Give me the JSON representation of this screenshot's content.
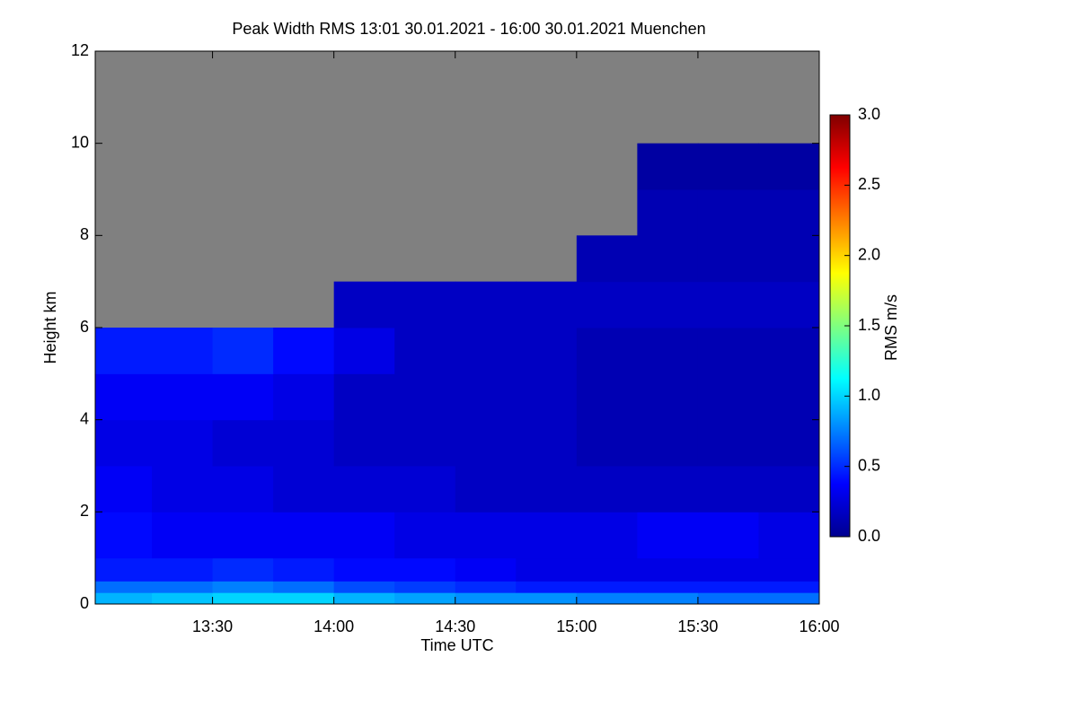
{
  "chart_data": {
    "type": "heatmap",
    "title": "Peak Width RMS   13:01 30.01.2021 - 16:00 30.01.2021 Muenchen",
    "xlabel": "Time UTC",
    "ylabel": "Height km",
    "colorbar_label": "RMS m/s",
    "xlim": [
      781,
      960
    ],
    "xticks": [
      {
        "value": 810,
        "label": "13:30"
      },
      {
        "value": 840,
        "label": "14:00"
      },
      {
        "value": 870,
        "label": "14:30"
      },
      {
        "value": 900,
        "label": "15:00"
      },
      {
        "value": 930,
        "label": "15:30"
      },
      {
        "value": 960,
        "label": "16:00"
      }
    ],
    "ylim": [
      0,
      12
    ],
    "yticks": [
      0,
      2,
      4,
      6,
      8,
      10,
      12
    ],
    "clim": [
      0,
      3
    ],
    "cticks": [
      {
        "value": 0,
        "label": "0.0"
      },
      {
        "value": 0.5,
        "label": "0.5"
      },
      {
        "value": 1,
        "label": "1.0"
      },
      {
        "value": 1.5,
        "label": "1.5"
      },
      {
        "value": 2,
        "label": "2.0"
      },
      {
        "value": 2.5,
        "label": "2.5"
      },
      {
        "value": 3,
        "label": "3.0"
      }
    ],
    "colormap": "jet",
    "missing_color": "#808080",
    "xbins": [
      781,
      795,
      810,
      825,
      840,
      855,
      870,
      885,
      900,
      915,
      930,
      945,
      960
    ],
    "ybins": [
      0,
      0.25,
      0.5,
      1,
      2,
      3,
      4,
      5,
      6,
      7,
      8,
      9,
      10,
      11,
      12
    ],
    "values": [
      [
        0.9,
        0.95,
        1.0,
        1.0,
        0.9,
        0.85,
        0.8,
        0.8,
        0.75,
        0.75,
        0.7,
        0.7
      ],
      [
        0.7,
        0.7,
        0.75,
        0.7,
        0.6,
        0.55,
        0.5,
        0.45,
        0.45,
        0.45,
        0.45,
        0.45
      ],
      [
        0.45,
        0.45,
        0.5,
        0.45,
        0.4,
        0.4,
        0.35,
        0.3,
        0.3,
        0.3,
        0.3,
        0.3
      ],
      [
        0.4,
        0.35,
        0.35,
        0.35,
        0.35,
        0.3,
        0.3,
        0.3,
        0.3,
        0.35,
        0.35,
        0.3
      ],
      [
        0.35,
        0.3,
        0.3,
        0.25,
        0.25,
        0.25,
        0.2,
        0.2,
        0.2,
        0.2,
        0.2,
        0.2
      ],
      [
        0.3,
        0.3,
        0.25,
        0.25,
        0.2,
        0.2,
        0.2,
        0.2,
        0.15,
        0.15,
        0.15,
        0.15
      ],
      [
        0.35,
        0.35,
        0.35,
        0.3,
        0.2,
        0.2,
        0.2,
        0.2,
        0.15,
        0.15,
        0.15,
        0.15
      ],
      [
        0.45,
        0.45,
        0.5,
        0.4,
        0.3,
        0.2,
        0.2,
        0.2,
        0.15,
        0.15,
        0.15,
        0.15
      ],
      [
        null,
        null,
        null,
        null,
        0.2,
        0.2,
        0.2,
        0.2,
        0.2,
        0.2,
        0.2,
        0.2
      ],
      [
        null,
        null,
        null,
        null,
        null,
        null,
        null,
        null,
        0.15,
        0.15,
        0.15,
        0.15
      ],
      [
        null,
        null,
        null,
        null,
        null,
        null,
        null,
        null,
        null,
        0.15,
        0.15,
        0.15
      ],
      [
        null,
        null,
        null,
        null,
        null,
        null,
        null,
        null,
        null,
        0.1,
        0.1,
        0.1
      ],
      [
        null,
        null,
        null,
        null,
        null,
        null,
        null,
        null,
        null,
        null,
        null,
        null
      ],
      [
        null,
        null,
        null,
        null,
        null,
        null,
        null,
        null,
        null,
        null,
        null,
        null
      ]
    ]
  }
}
